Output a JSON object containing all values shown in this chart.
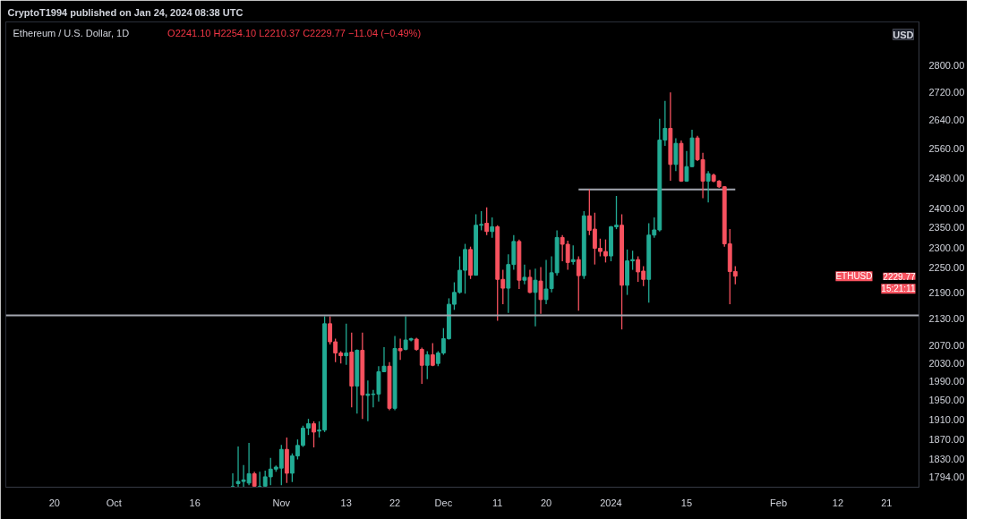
{
  "chart_data": {
    "type": "candlestick",
    "title": "Ethereum / U.S. Dollar, 1D",
    "subtitle": "O2241.10 H2254.10 L2210.37 C2229.77 −11.04 (−0.49%)",
    "ylabel": "USD",
    "annotations": [
      "CryptoT1994 published on Jan 24, 2024 08:38 UTC",
      "ETHUSD",
      "2229.77",
      "15:21:11"
    ],
    "x": [
      "2023-10-23",
      "2023-10-24",
      "2023-10-25",
      "2023-10-26",
      "2023-10-27",
      "2023-10-28",
      "2023-10-29",
      "2023-10-30",
      "2023-10-31",
      "2023-11-01",
      "2023-11-02",
      "2023-11-03",
      "2023-11-04",
      "2023-11-05",
      "2023-11-06",
      "2023-11-07",
      "2023-11-08",
      "2023-11-09",
      "2023-11-10",
      "2023-11-11",
      "2023-11-12",
      "2023-11-13",
      "2023-11-14",
      "2023-11-15",
      "2023-11-16",
      "2023-11-17",
      "2023-11-18",
      "2023-11-19",
      "2023-11-20",
      "2023-11-21",
      "2023-11-22",
      "2023-11-23",
      "2023-11-24",
      "2023-11-25",
      "2023-11-26",
      "2023-11-27",
      "2023-11-28",
      "2023-11-29",
      "2023-11-30",
      "2023-12-01",
      "2023-12-02",
      "2023-12-03",
      "2023-12-04",
      "2023-12-05",
      "2023-12-06",
      "2023-12-07",
      "2023-12-08",
      "2023-12-09",
      "2023-12-10",
      "2023-12-11",
      "2023-12-12",
      "2023-12-13",
      "2023-12-14",
      "2023-12-15",
      "2023-12-16",
      "2023-12-17",
      "2023-12-18",
      "2023-12-19",
      "2023-12-20",
      "2023-12-21",
      "2023-12-22",
      "2023-12-23",
      "2023-12-24",
      "2023-12-25",
      "2023-12-26",
      "2023-12-27",
      "2023-12-28",
      "2023-12-29",
      "2023-12-30",
      "2023-12-31",
      "2024-01-01",
      "2024-01-02",
      "2024-01-03",
      "2024-01-04",
      "2024-01-05",
      "2024-01-06",
      "2024-01-07",
      "2024-01-08",
      "2024-01-09",
      "2024-01-10",
      "2024-01-11",
      "2024-01-12",
      "2024-01-13",
      "2024-01-14",
      "2024-01-15",
      "2024-01-16",
      "2024-01-17",
      "2024-01-18",
      "2024-01-19",
      "2024-01-20",
      "2024-01-21",
      "2024-01-22",
      "2024-01-23",
      "2024-01-24"
    ],
    "ohlc": [
      [
        1776,
        1802,
        1776,
        1776
      ],
      [
        1782,
        1855,
        1776,
        1786
      ],
      [
        1786,
        1818,
        1776,
        1789
      ],
      [
        1783,
        1862,
        1779,
        1801
      ],
      [
        1801,
        1805,
        1776,
        1777
      ],
      [
        1776,
        1805,
        1776,
        1776
      ],
      [
        1777,
        1807,
        1776,
        1795
      ],
      [
        1795,
        1832,
        1779,
        1810
      ],
      [
        1810,
        1817,
        1805,
        1814
      ],
      [
        1812,
        1858,
        1779,
        1849
      ],
      [
        1849,
        1873,
        1783,
        1802
      ],
      [
        1802,
        1841,
        1785,
        1836
      ],
      [
        1836,
        1869,
        1829,
        1857
      ],
      [
        1857,
        1897,
        1854,
        1892
      ],
      [
        1892,
        1911,
        1878,
        1901
      ],
      [
        1901,
        1906,
        1853,
        1884
      ],
      [
        1886,
        1906,
        1873,
        1888
      ],
      [
        1888,
        2135,
        1884,
        2118
      ],
      [
        2118,
        2135,
        2071,
        2077
      ],
      [
        2077,
        2084,
        2032,
        2052
      ],
      [
        2052,
        2056,
        2029,
        2046
      ],
      [
        2046,
        2118,
        2026,
        2052
      ],
      [
        2054,
        2098,
        1935,
        1980
      ],
      [
        1980,
        2060,
        1922,
        2058
      ],
      [
        2058,
        2098,
        1911,
        1961
      ],
      [
        1960,
        1992,
        1906,
        1963
      ],
      [
        1962,
        1972,
        1935,
        1963
      ],
      [
        1963,
        2023,
        1947,
        2011
      ],
      [
        2011,
        2065,
        2010,
        2023
      ],
      [
        2023,
        2032,
        1929,
        1933
      ],
      [
        1933,
        2090,
        1929,
        2062
      ],
      [
        2062,
        2084,
        2037,
        2057
      ],
      [
        2060,
        2135,
        2058,
        2081
      ],
      [
        2081,
        2086,
        2078,
        2084
      ],
      [
        2083,
        2086,
        2057,
        2060
      ],
      [
        2060,
        2064,
        1985,
        2025
      ],
      [
        2025,
        2056,
        1995,
        2048
      ],
      [
        2048,
        2074,
        2023,
        2025
      ],
      [
        2029,
        2056,
        2023,
        2052
      ],
      [
        2052,
        2108,
        2048,
        2084
      ],
      [
        2084,
        2177,
        2082,
        2163
      ],
      [
        2163,
        2215,
        2150,
        2191
      ],
      [
        2191,
        2278,
        2188,
        2244
      ],
      [
        2244,
        2309,
        2188,
        2295
      ],
      [
        2295,
        2302,
        2223,
        2232
      ],
      [
        2232,
        2384,
        2231,
        2356
      ],
      [
        2356,
        2392,
        2343,
        2358
      ],
      [
        2361,
        2402,
        2331,
        2340
      ],
      [
        2340,
        2376,
        2324,
        2352
      ],
      [
        2352,
        2356,
        2125,
        2222
      ],
      [
        2222,
        2245,
        2163,
        2201
      ],
      [
        2201,
        2283,
        2143,
        2258
      ],
      [
        2258,
        2331,
        2245,
        2315
      ],
      [
        2315,
        2320,
        2199,
        2220
      ],
      [
        2220,
        2258,
        2210,
        2227
      ],
      [
        2227,
        2245,
        2189,
        2191
      ],
      [
        2191,
        2248,
        2112,
        2220
      ],
      [
        2218,
        2252,
        2141,
        2174
      ],
      [
        2174,
        2269,
        2163,
        2199
      ],
      [
        2200,
        2278,
        2191,
        2238
      ],
      [
        2238,
        2343,
        2231,
        2325
      ],
      [
        2325,
        2331,
        2266,
        2308
      ],
      [
        2308,
        2317,
        2245,
        2263
      ],
      [
        2265,
        2305,
        2258,
        2270
      ],
      [
        2270,
        2278,
        2148,
        2231
      ],
      [
        2231,
        2392,
        2223,
        2380
      ],
      [
        2380,
        2449,
        2331,
        2343
      ],
      [
        2346,
        2388,
        2258,
        2298
      ],
      [
        2298,
        2322,
        2278,
        2290
      ],
      [
        2290,
        2320,
        2263,
        2279
      ],
      [
        2279,
        2354,
        2266,
        2352
      ],
      [
        2352,
        2432,
        2346,
        2356
      ],
      [
        2356,
        2384,
        2105,
        2208
      ],
      [
        2208,
        2295,
        2185,
        2267
      ],
      [
        2267,
        2292,
        2245,
        2270
      ],
      [
        2270,
        2278,
        2216,
        2240
      ],
      [
        2242,
        2254,
        2206,
        2222
      ],
      [
        2222,
        2361,
        2167,
        2331
      ],
      [
        2331,
        2376,
        2324,
        2344
      ],
      [
        2344,
        2643,
        2340,
        2583
      ],
      [
        2583,
        2695,
        2567,
        2616
      ],
      [
        2616,
        2720,
        2472,
        2516
      ],
      [
        2516,
        2588,
        2498,
        2574
      ],
      [
        2574,
        2582,
        2469,
        2471
      ],
      [
        2471,
        2553,
        2469,
        2510
      ],
      [
        2510,
        2612,
        2509,
        2589
      ],
      [
        2589,
        2595,
        2525,
        2529
      ],
      [
        2529,
        2548,
        2426,
        2471
      ],
      [
        2471,
        2498,
        2415,
        2491
      ],
      [
        2487,
        2491,
        2468,
        2471
      ],
      [
        2471,
        2474,
        2453,
        2456
      ],
      [
        2456,
        2458,
        2302,
        2309
      ],
      [
        2309,
        2346,
        2163,
        2241
      ],
      [
        2241.1,
        2254.1,
        2210.37,
        2229.77
      ]
    ],
    "colors": [
      "#22ab94",
      "#22ab94",
      "#22ab94",
      "#22ab94",
      "#f7525f",
      "#22ab94",
      "#22ab94",
      "#22ab94",
      "#22ab94",
      "#22ab94",
      "#f7525f",
      "#22ab94",
      "#22ab94",
      "#22ab94",
      "#22ab94",
      "#f7525f",
      "#22ab94",
      "#22ab94",
      "#f7525f",
      "#f7525f",
      "#f7525f",
      "#22ab94",
      "#f7525f",
      "#22ab94",
      "#f7525f",
      "#22ab94",
      "#22ab94",
      "#22ab94",
      "#22ab94",
      "#f7525f",
      "#22ab94",
      "#f7525f",
      "#22ab94",
      "#22ab94",
      "#f7525f",
      "#f7525f",
      "#22ab94",
      "#f7525f",
      "#22ab94",
      "#22ab94",
      "#22ab94",
      "#22ab94",
      "#22ab94",
      "#22ab94",
      "#f7525f",
      "#22ab94",
      "#22ab94",
      "#f7525f",
      "#22ab94",
      "#f7525f",
      "#f7525f",
      "#22ab94",
      "#22ab94",
      "#f7525f",
      "#22ab94",
      "#f7525f",
      "#22ab94",
      "#f7525f",
      "#22ab94",
      "#22ab94",
      "#22ab94",
      "#f7525f",
      "#f7525f",
      "#22ab94",
      "#f7525f",
      "#22ab94",
      "#f7525f",
      "#f7525f",
      "#f7525f",
      "#f7525f",
      "#22ab94",
      "#22ab94",
      "#f7525f",
      "#22ab94",
      "#22ab94",
      "#f7525f",
      "#f7525f",
      "#22ab94",
      "#22ab94",
      "#22ab94",
      "#22ab94",
      "#f7525f",
      "#22ab94",
      "#f7525f",
      "#22ab94",
      "#22ab94",
      "#f7525f",
      "#f7525f",
      "#22ab94",
      "#f7525f",
      "#f7525f",
      "#f7525f",
      "#f7525f",
      "#f7525f"
    ],
    "series": [
      {
        "type": "line",
        "x": [
          "2023-12-26",
          "2024-01-24"
        ],
        "values": [
          2449,
          2449
        ],
        "color": "#a3a6af"
      }
    ],
    "ref_lines": [
      {
        "axis": "y",
        "value": 2137,
        "color": "#a3a6af"
      }
    ],
    "log": true,
    "xlim": [
      "2023-09-11",
      "2024-02-27"
    ],
    "xticks": [
      {
        "value": "2023-09-20",
        "label": "20"
      },
      {
        "value": "2023-10-01",
        "label": "Oct"
      },
      {
        "value": "2023-10-16",
        "label": "16"
      },
      {
        "value": "2023-11-01",
        "label": "Nov"
      },
      {
        "value": "2023-11-13",
        "label": "13"
      },
      {
        "value": "2023-11-22",
        "label": "22"
      },
      {
        "value": "2023-12-01",
        "label": "Dec"
      },
      {
        "value": "2023-12-11",
        "label": "11"
      },
      {
        "value": "2023-12-20",
        "label": "20"
      },
      {
        "value": "2024-01-01",
        "label": "2024"
      },
      {
        "value": "2024-01-15",
        "label": "15"
      },
      {
        "value": "2024-02-01",
        "label": "Feb"
      },
      {
        "value": "2024-02-12",
        "label": "12"
      },
      {
        "value": "2024-02-21",
        "label": "21"
      }
    ],
    "ylim": [
      1775,
      2935
    ],
    "yticks": [
      {
        "value": 1794,
        "label": "1794.00"
      },
      {
        "value": 1830,
        "label": "1830.00"
      },
      {
        "value": 1870,
        "label": "1870.00"
      },
      {
        "value": 1910,
        "label": "1910.00"
      },
      {
        "value": 1950,
        "label": "1950.00"
      },
      {
        "value": 1990,
        "label": "1990.00"
      },
      {
        "value": 2030,
        "label": "2030.00"
      },
      {
        "value": 2070,
        "label": "2070.00"
      },
      {
        "value": 2130,
        "label": "2130.00"
      },
      {
        "value": 2190,
        "label": "2190.00"
      },
      {
        "value": 2250,
        "label": "2250.00"
      },
      {
        "value": 2300,
        "label": "2300.00"
      },
      {
        "value": 2350,
        "label": "2350.00"
      },
      {
        "value": 2400,
        "label": "2400.00"
      },
      {
        "value": 2480,
        "label": "2480.00"
      },
      {
        "value": 2560,
        "label": "2560.00"
      },
      {
        "value": 2640,
        "label": "2640.00"
      },
      {
        "value": 2720,
        "label": "2720.00"
      },
      {
        "value": 2800,
        "label": "2800.00"
      }
    ]
  }
}
